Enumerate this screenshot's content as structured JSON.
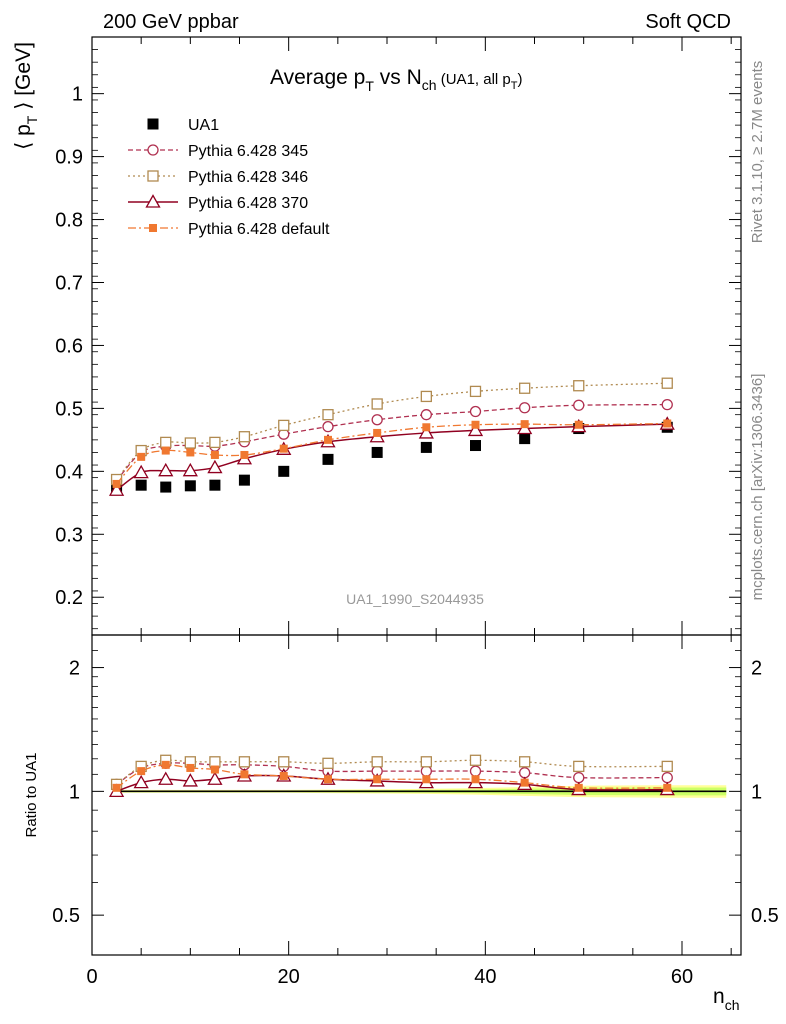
{
  "header": {
    "left": "200 GeV ppbar",
    "right": "Soft QCD"
  },
  "side_labels": {
    "rivet": "Rivet 3.1.10, ≥ 2.7M events",
    "mcplots": "mcplots.cern.ch [arXiv:1306.3436]"
  },
  "watermark": "UA1_1990_S2044935",
  "chart_data": [
    {
      "type": "scatter",
      "panel": "main",
      "title_main": "Average p",
      "title_sub": "T",
      "title_vs": " vs N",
      "title_sub2": "ch",
      "title_small": " (UA1, all p",
      "title_small_sub": "T",
      "title_small_end": ")",
      "ylabel": "⟨ p",
      "ylabel_sub": "T",
      "ylabel_end": " ⟩ [GeV]",
      "xlim": [
        0,
        66
      ],
      "ylim": [
        0.14,
        1.09
      ],
      "yticks": [
        0.2,
        0.3,
        0.4,
        0.5,
        0.6,
        0.7,
        0.8,
        0.9,
        1
      ],
      "ytick_labels": [
        "0.2",
        "0.3",
        "0.4",
        "0.5",
        "0.6",
        "0.7",
        "0.8",
        "0.9",
        "1"
      ],
      "legend_position": "top-left",
      "series": [
        {
          "name": "UA1",
          "color": "#000000",
          "marker": "filled-square",
          "x": [
            2.5,
            5,
            7.5,
            10,
            12.5,
            15.5,
            19.5,
            24,
            29,
            34,
            39,
            44,
            49.5,
            58.5
          ],
          "y": [
            0.371,
            0.378,
            0.375,
            0.377,
            0.378,
            0.386,
            0.4,
            0.419,
            0.43,
            0.438,
            0.441,
            0.452,
            0.468,
            0.47
          ]
        },
        {
          "name": "Pythia 6.428 345",
          "color": "#b03050",
          "marker": "open-circle",
          "line": "dashed",
          "x": [
            2.5,
            5,
            7.5,
            10,
            12.5,
            15.5,
            19.5,
            24,
            29,
            34,
            39,
            44,
            49.5,
            58.5
          ],
          "y": [
            0.385,
            0.43,
            0.44,
            0.441,
            0.44,
            0.447,
            0.459,
            0.471,
            0.482,
            0.49,
            0.495,
            0.501,
            0.505,
            0.506
          ]
        },
        {
          "name": "Pythia 6.428 346",
          "color": "#b08a50",
          "marker": "open-square",
          "line": "dotted",
          "x": [
            2.5,
            5,
            7.5,
            10,
            12.5,
            15.5,
            19.5,
            24,
            29,
            34,
            39,
            44,
            49.5,
            58.5
          ],
          "y": [
            0.387,
            0.433,
            0.446,
            0.445,
            0.446,
            0.455,
            0.473,
            0.49,
            0.507,
            0.519,
            0.527,
            0.532,
            0.536,
            0.54
          ]
        },
        {
          "name": "Pythia 6.428 370",
          "color": "#900020",
          "marker": "open-triangle",
          "line": "solid",
          "x": [
            2.5,
            5,
            7.5,
            10,
            12.5,
            15.5,
            19.5,
            24,
            29,
            34,
            39,
            44,
            49.5,
            58.5
          ],
          "y": [
            0.37,
            0.398,
            0.401,
            0.401,
            0.406,
            0.42,
            0.435,
            0.447,
            0.455,
            0.461,
            0.465,
            0.468,
            0.471,
            0.475
          ]
        },
        {
          "name": "Pythia 6.428 default",
          "color": "#f07830",
          "marker": "filled-small-square",
          "line": "dashdot",
          "x": [
            2.5,
            5,
            7.5,
            10,
            12.5,
            15.5,
            19.5,
            24,
            29,
            34,
            39,
            44,
            49.5,
            58.5
          ],
          "y": [
            0.38,
            0.423,
            0.433,
            0.43,
            0.426,
            0.426,
            0.436,
            0.45,
            0.461,
            0.47,
            0.474,
            0.475,
            0.474,
            0.476
          ]
        }
      ]
    },
    {
      "type": "scatter",
      "panel": "ratio",
      "ylabel": "Ratio to UA1",
      "xlabel": "n",
      "xlabel_sub": "ch",
      "xlim": [
        0,
        66
      ],
      "ylim": [
        0.4,
        2.4
      ],
      "log_y": true,
      "xticks": [
        0,
        20,
        40,
        60
      ],
      "xtick_labels": [
        "0",
        "20",
        "40",
        "60"
      ],
      "yticks": [
        0.5,
        1,
        2
      ],
      "ytick_labels": [
        "0.5",
        "1",
        "2"
      ],
      "series": [
        {
          "name": "Pythia 6.428 345",
          "color": "#b03050",
          "marker": "open-circle",
          "line": "dashed",
          "x": [
            2.5,
            5,
            7.5,
            10,
            12.5,
            15.5,
            19.5,
            24,
            29,
            34,
            39,
            44,
            49.5,
            58.5
          ],
          "y": [
            1.04,
            1.14,
            1.17,
            1.17,
            1.16,
            1.16,
            1.15,
            1.12,
            1.12,
            1.12,
            1.12,
            1.11,
            1.08,
            1.08
          ]
        },
        {
          "name": "Pythia 6.428 346",
          "color": "#b08a50",
          "marker": "open-square",
          "line": "dotted",
          "x": [
            2.5,
            5,
            7.5,
            10,
            12.5,
            15.5,
            19.5,
            24,
            29,
            34,
            39,
            44,
            49.5,
            58.5
          ],
          "y": [
            1.04,
            1.15,
            1.19,
            1.18,
            1.18,
            1.18,
            1.18,
            1.17,
            1.18,
            1.18,
            1.19,
            1.18,
            1.15,
            1.15
          ]
        },
        {
          "name": "Pythia 6.428 370",
          "color": "#900020",
          "marker": "open-triangle",
          "line": "solid",
          "x": [
            2.5,
            5,
            7.5,
            10,
            12.5,
            15.5,
            19.5,
            24,
            29,
            34,
            39,
            44,
            49.5,
            58.5
          ],
          "y": [
            1.0,
            1.05,
            1.07,
            1.06,
            1.07,
            1.09,
            1.09,
            1.07,
            1.06,
            1.05,
            1.05,
            1.04,
            1.01,
            1.01
          ]
        },
        {
          "name": "Pythia 6.428 default",
          "color": "#f07830",
          "marker": "filled-small-square",
          "line": "dashdot",
          "x": [
            2.5,
            5,
            7.5,
            10,
            12.5,
            15.5,
            19.5,
            24,
            29,
            34,
            39,
            44,
            49.5,
            58.5
          ],
          "y": [
            1.02,
            1.12,
            1.16,
            1.14,
            1.13,
            1.1,
            1.09,
            1.07,
            1.07,
            1.07,
            1.07,
            1.05,
            1.02,
            1.02
          ]
        }
      ],
      "uncertainty_band": {
        "x": [
          2.5,
          5,
          7.5,
          10,
          12.5,
          15.5,
          19.5,
          24,
          29,
          34,
          39,
          44,
          49.5,
          58.5
        ],
        "inner": [
          0.005,
          0.005,
          0.005,
          0.005,
          0.005,
          0.005,
          0.005,
          0.006,
          0.007,
          0.008,
          0.01,
          0.015,
          0.02,
          0.022
        ],
        "outer": [
          0.008,
          0.008,
          0.008,
          0.008,
          0.008,
          0.008,
          0.008,
          0.01,
          0.012,
          0.014,
          0.018,
          0.025,
          0.032,
          0.035
        ],
        "inner_color": "#ccff66",
        "outer_color": "#ffff99"
      }
    }
  ]
}
